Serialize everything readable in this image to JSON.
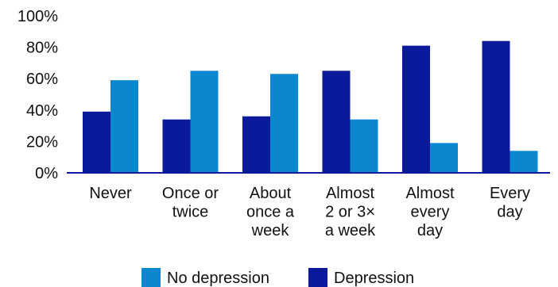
{
  "chart_data": {
    "type": "bar",
    "title": "",
    "xlabel": "",
    "ylabel": "",
    "ylim": [
      0,
      100
    ],
    "y_ticks": [
      "0%",
      "20%",
      "40%",
      "60%",
      "80%",
      "100%"
    ],
    "grid": false,
    "categories": [
      [
        "Never"
      ],
      [
        "Once or",
        "twice"
      ],
      [
        "About",
        "once a",
        "week"
      ],
      [
        "Almost",
        "2 or 3×",
        "a week"
      ],
      [
        "Almost",
        "every",
        "day"
      ],
      [
        "Every",
        "day"
      ]
    ],
    "series": [
      {
        "name": "Depression",
        "color": "#0a1a9a",
        "values": [
          39,
          34,
          36,
          65,
          81,
          84
        ]
      },
      {
        "name": "No depression",
        "color": "#0a87cf",
        "values": [
          59,
          65,
          63,
          34,
          19,
          14
        ]
      }
    ],
    "axis_color": "#0a1a9a",
    "legend": {
      "placement": "bottom",
      "order": [
        "No depression",
        "Depression"
      ]
    }
  }
}
